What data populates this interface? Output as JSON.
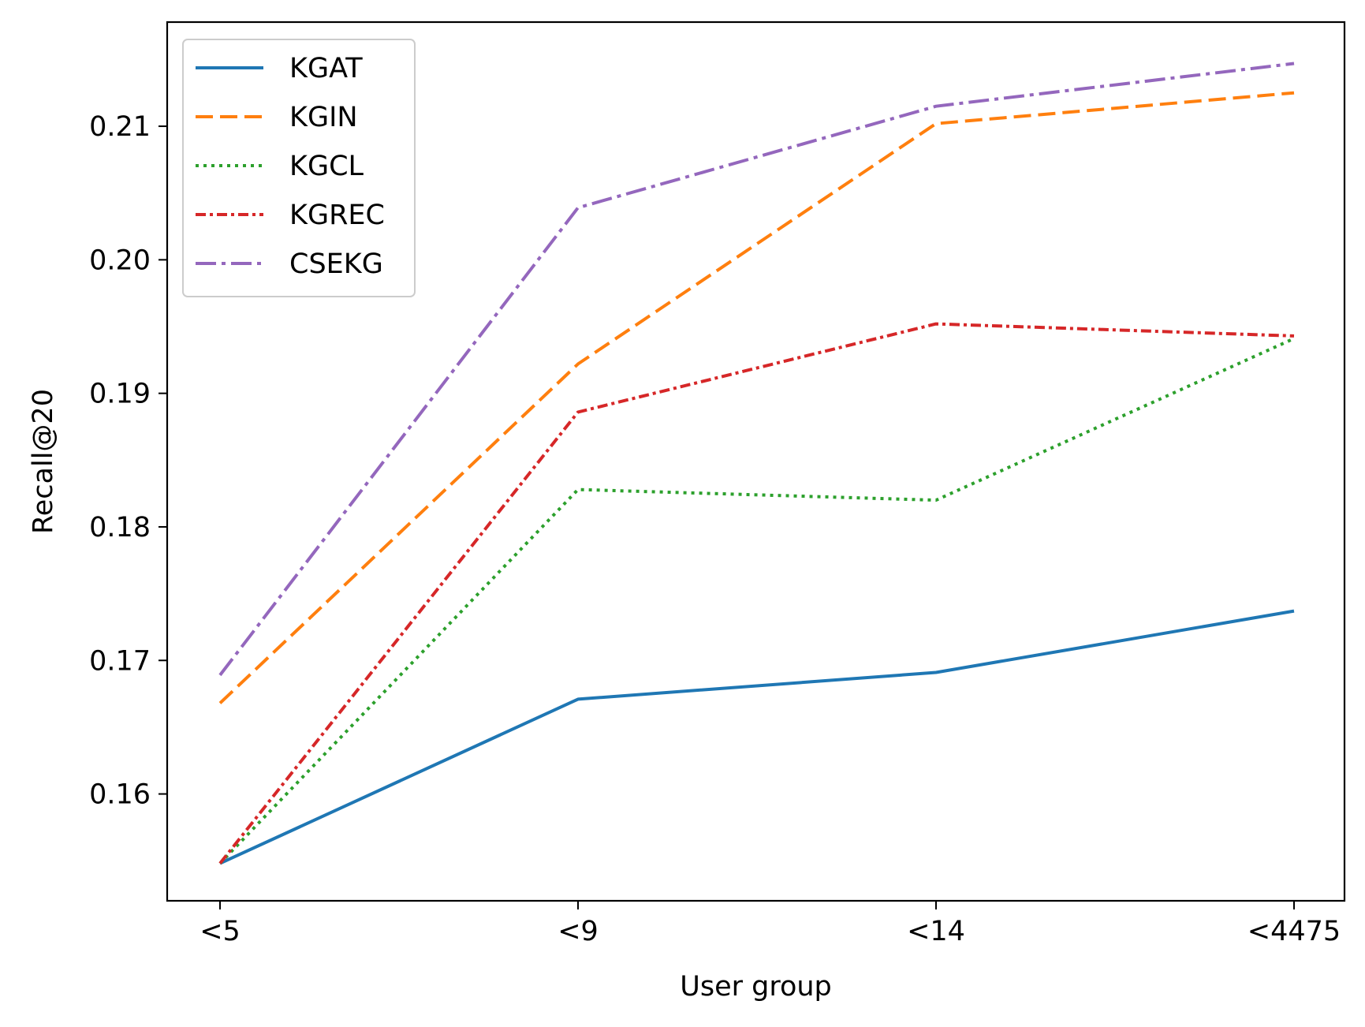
{
  "chart_data": {
    "type": "line",
    "title": "",
    "xlabel": "User group",
    "ylabel": "Recall@20",
    "categories": [
      "<5",
      "<9",
      "<14",
      "<4475"
    ],
    "ylim": [
      0.152,
      0.2178
    ],
    "yticks": [
      "0.16",
      "0.17",
      "0.18",
      "0.19",
      "0.20",
      "0.21"
    ],
    "ytick_values": [
      0.16,
      0.17,
      0.18,
      0.19,
      0.2,
      0.21
    ],
    "grid": false,
    "legend_position": "upper-left",
    "series": [
      {
        "name": "KGAT",
        "values": [
          0.1548,
          0.1671,
          0.1691,
          0.1737
        ],
        "color": "#1f77b4",
        "linestyle": "solid"
      },
      {
        "name": "KGIN",
        "values": [
          0.1668,
          0.1922,
          0.2102,
          0.2125
        ],
        "color": "#ff7f0e",
        "linestyle": "dashed"
      },
      {
        "name": "KGCL",
        "values": [
          0.1548,
          0.1828,
          0.182,
          0.1941
        ],
        "color": "#2ca02c",
        "linestyle": "dotted"
      },
      {
        "name": "KGREC",
        "values": [
          0.1548,
          0.1886,
          0.1952,
          0.1943
        ],
        "color": "#d62728",
        "linestyle": "densely-dashdot"
      },
      {
        "name": "CSEKG",
        "values": [
          0.1689,
          0.2039,
          0.2115,
          0.2147
        ],
        "color": "#9467bd",
        "linestyle": "dashdot"
      }
    ]
  }
}
